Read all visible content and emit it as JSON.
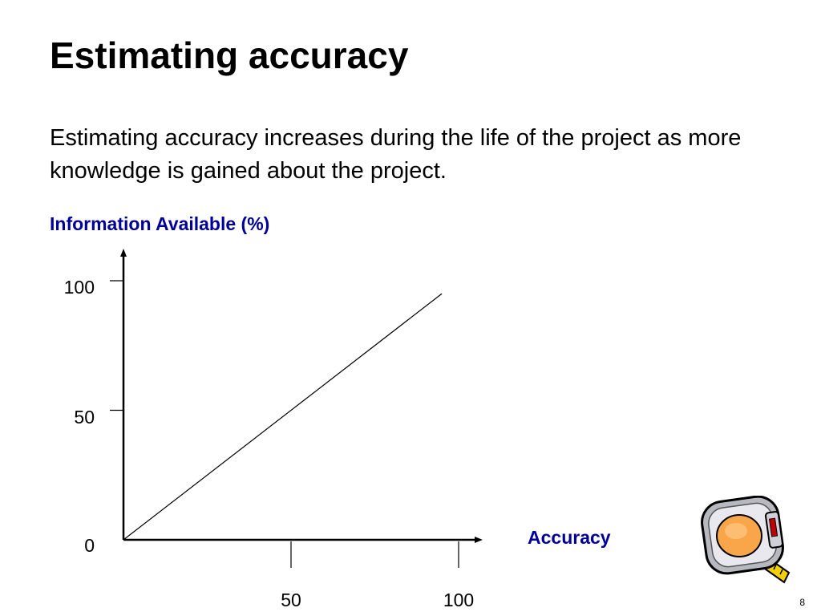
{
  "slide": {
    "title": "Estimating accuracy",
    "body": "Estimating accuracy increases during the life of the project as more knowledge is gained about the project.",
    "page_number": "8"
  },
  "colors": {
    "label_blue": "#000099",
    "axis": "#000000"
  },
  "icons": {
    "decoration": "tape-measure-icon"
  },
  "chart_data": {
    "type": "line",
    "title": "",
    "xlabel": "Accuracy",
    "ylabel": "Information Available (%)",
    "xlim": [
      0,
      100
    ],
    "ylim": [
      0,
      100
    ],
    "x_ticks": [
      {
        "value": 50,
        "label": "50"
      },
      {
        "value": 100,
        "label": "100"
      }
    ],
    "y_ticks": [
      {
        "value": 0,
        "label": "0"
      },
      {
        "value": 50,
        "label": "50"
      },
      {
        "value": 100,
        "label": "100"
      }
    ],
    "grid": false,
    "legend": "none",
    "series": [
      {
        "x": [
          0,
          95
        ],
        "y": [
          0,
          95
        ]
      }
    ]
  }
}
